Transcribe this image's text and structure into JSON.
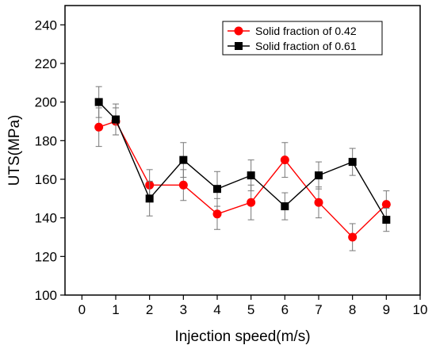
{
  "chart_data": {
    "type": "line",
    "xlabel": "Injection speed(m/s)",
    "ylabel": "UTS(MPa)",
    "xlim": [
      -0.5,
      10
    ],
    "ylim": [
      100,
      250
    ],
    "xticks": [
      0,
      1,
      2,
      3,
      4,
      5,
      6,
      7,
      8,
      9,
      10
    ],
    "yticks": [
      100,
      120,
      140,
      160,
      180,
      200,
      220,
      240
    ],
    "grid": false,
    "legend_position": "top-right",
    "series": [
      {
        "name": "Solid fraction of 0.42",
        "color": "#ff0000",
        "marker": "circle",
        "x": [
          0.5,
          1,
          2,
          3,
          4,
          5,
          6,
          7,
          8,
          9
        ],
        "y": [
          187,
          190,
          157,
          157,
          142,
          148,
          170,
          148,
          130,
          147
        ],
        "error": [
          10,
          7,
          8,
          8,
          8,
          9,
          9,
          8,
          7,
          7
        ]
      },
      {
        "name": "Solid fraction of 0.61",
        "color": "#000000",
        "marker": "square",
        "x": [
          0.5,
          1,
          2,
          3,
          4,
          5,
          6,
          7,
          8,
          9
        ],
        "y": [
          200,
          191,
          150,
          170,
          155,
          162,
          146,
          162,
          169,
          139
        ],
        "error": [
          8,
          8,
          9,
          9,
          9,
          8,
          7,
          7,
          7,
          6
        ]
      }
    ]
  }
}
